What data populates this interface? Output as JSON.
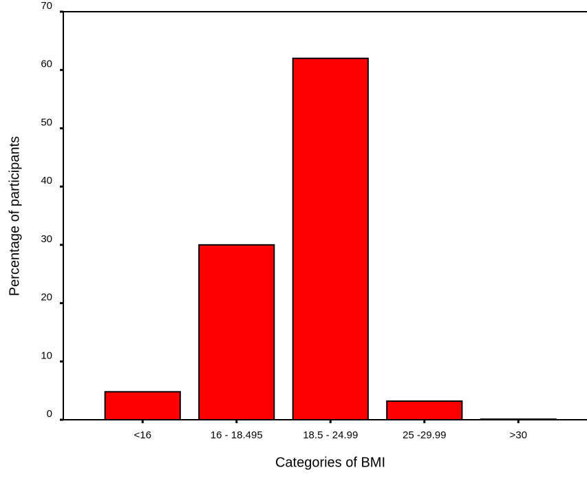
{
  "chart_data": {
    "type": "bar",
    "xlabel": "Categories of BMI",
    "ylabel": "Percentage of participants",
    "categories": [
      "<16",
      "16 - 18.495",
      "18.5 - 24.99",
      "25 -29.99",
      ">30"
    ],
    "values": [
      4.8,
      30,
      62,
      3.2,
      0.1
    ],
    "color": "#ff0000",
    "ylim": [
      0,
      70
    ],
    "yticks": [
      0,
      10,
      20,
      30,
      40,
      50,
      60,
      70
    ],
    "grid": false
  }
}
